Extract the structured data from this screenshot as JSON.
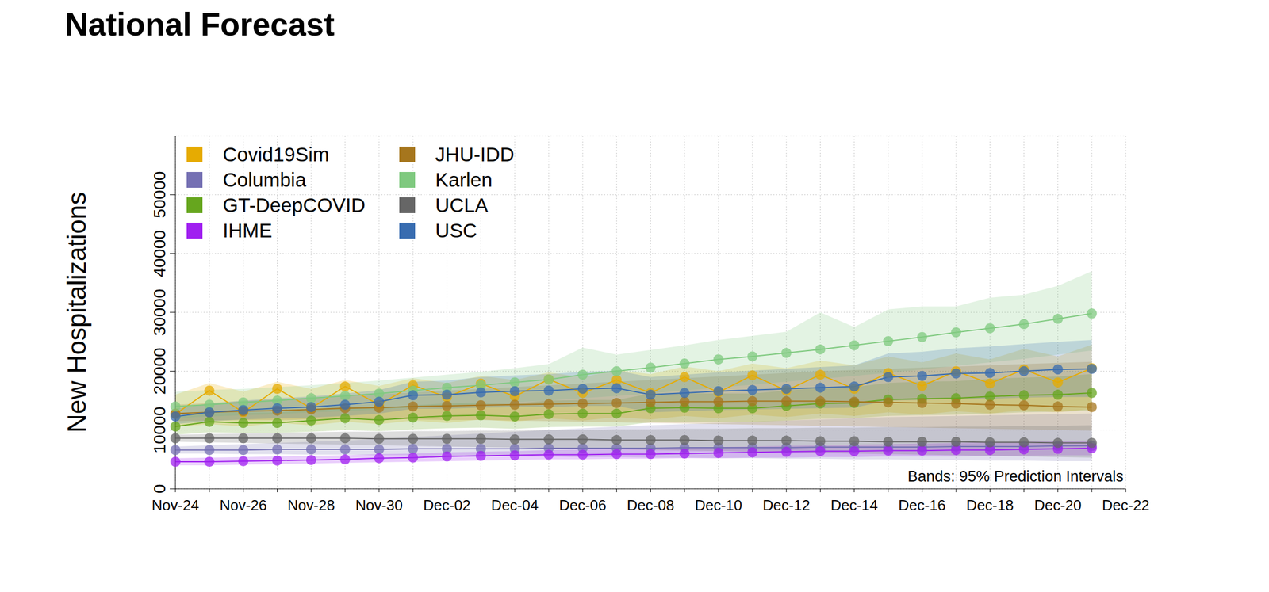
{
  "chart_data": {
    "type": "line",
    "title": "National Forecast",
    "y_label": "New Hospitalizations",
    "annotation": "Bands: 95% Prediction Intervals",
    "categories": [
      "Nov-24",
      null,
      "Nov-26",
      null,
      "Nov-28",
      null,
      "Nov-30",
      null,
      "Dec-02",
      null,
      "Dec-04",
      null,
      "Dec-06",
      null,
      "Dec-08",
      null,
      "Dec-10",
      null,
      "Dec-12",
      null,
      "Dec-14",
      null,
      "Dec-16",
      null,
      "Dec-18",
      null,
      "Dec-20",
      null,
      "Dec-22"
    ],
    "series": [
      {
        "name": "Covid19Sim",
        "color": "#e6ab02",
        "values": [
          12700,
          16700,
          13000,
          17000,
          13700,
          17400,
          14300,
          17600,
          15600,
          17900,
          15700,
          18600,
          16300,
          18500,
          16300,
          19000,
          16400,
          19300,
          16700,
          19400,
          17000,
          19700,
          17500,
          20000,
          17900,
          20300,
          18100,
          20500,
          null
        ],
        "lower": [
          10500,
          11000,
          10600,
          11200,
          10800,
          11400,
          11000,
          11600,
          11200,
          11800,
          11400,
          12000,
          11600,
          12200,
          11800,
          12400,
          12000,
          12600,
          12200,
          12800,
          12400,
          13000,
          12600,
          13200,
          12800,
          13400,
          13000,
          13600,
          null
        ],
        "upper": [
          16000,
          18000,
          16500,
          18200,
          17000,
          18500,
          17500,
          18800,
          18000,
          19200,
          18500,
          19800,
          19000,
          20200,
          19500,
          20800,
          20000,
          21300,
          20500,
          21800,
          21000,
          22500,
          21500,
          23000,
          22000,
          23800,
          22500,
          24500,
          null
        ]
      },
      {
        "name": "Columbia",
        "color": "#7570b3",
        "values": [
          6600,
          6600,
          6600,
          6700,
          6700,
          6700,
          6700,
          6800,
          6800,
          6800,
          6800,
          6900,
          6900,
          6900,
          6900,
          7000,
          7000,
          7000,
          7000,
          7100,
          7100,
          7100,
          7100,
          7200,
          7200,
          7200,
          7300,
          7300,
          null
        ],
        "lower": [
          6000,
          6000,
          5900,
          5900,
          5800,
          5800,
          5700,
          5700,
          5600,
          5600,
          5500,
          5500,
          5400,
          5400,
          5300,
          5300,
          5200,
          5200,
          5100,
          5100,
          5000,
          5000,
          4900,
          4900,
          4800,
          4800,
          4700,
          4700,
          null
        ],
        "upper": [
          7200,
          7400,
          7600,
          7800,
          8000,
          8200,
          8500,
          8800,
          9100,
          9400,
          9700,
          10000,
          10300,
          10600,
          10800,
          11000,
          11200,
          11400,
          11600,
          11800,
          12000,
          12200,
          12300,
          12400,
          12500,
          12600,
          12700,
          12800,
          null
        ]
      },
      {
        "name": "GT-DeepCOVID",
        "color": "#66a61e",
        "values": [
          10600,
          11400,
          11200,
          11200,
          11600,
          12000,
          11700,
          12100,
          12400,
          12500,
          12300,
          12700,
          12800,
          12800,
          13700,
          13800,
          13700,
          13700,
          14100,
          14500,
          14600,
          15200,
          15300,
          15400,
          15700,
          15900,
          16000,
          16300,
          null
        ],
        "lower": [
          9200,
          9600,
          9500,
          9500,
          9700,
          10000,
          9800,
          10100,
          10300,
          10400,
          10200,
          10500,
          10600,
          10600,
          11300,
          11400,
          11300,
          11300,
          11600,
          11900,
          12000,
          12400,
          12500,
          12600,
          12800,
          13000,
          13100,
          13300,
          null
        ],
        "upper": [
          12200,
          13200,
          13000,
          13000,
          13500,
          14000,
          13700,
          14200,
          14500,
          14700,
          14500,
          15000,
          15100,
          15100,
          16200,
          16300,
          16200,
          16200,
          16700,
          17200,
          17300,
          18000,
          18200,
          18300,
          18700,
          18900,
          19100,
          19500,
          null
        ]
      },
      {
        "name": "IHME",
        "color": "#a020f0",
        "values": [
          4600,
          4600,
          4700,
          4800,
          4900,
          5000,
          5200,
          5300,
          5500,
          5600,
          5700,
          5800,
          5800,
          5900,
          5900,
          6000,
          6100,
          6200,
          6300,
          6400,
          6400,
          6500,
          6500,
          6600,
          6600,
          6700,
          6800,
          6900,
          null
        ],
        "lower": [
          4000,
          4000,
          4100,
          4200,
          4300,
          4400,
          4500,
          4600,
          4700,
          4800,
          4900,
          5000,
          5000,
          5100,
          5100,
          5200,
          5200,
          5300,
          5300,
          5400,
          5400,
          5500,
          5500,
          5500,
          5600,
          5600,
          5700,
          5700,
          null
        ],
        "upper": [
          5200,
          5300,
          5400,
          5500,
          5600,
          5700,
          5900,
          6000,
          6200,
          6300,
          6400,
          6600,
          6700,
          6800,
          6900,
          7000,
          7100,
          7200,
          7300,
          7400,
          7500,
          7600,
          7700,
          7800,
          7900,
          8000,
          8100,
          8200,
          null
        ]
      },
      {
        "name": "JHU-IDD",
        "color": "#a6761d",
        "values": [
          12800,
          13000,
          13200,
          13300,
          13500,
          13700,
          13800,
          14000,
          14100,
          14200,
          14300,
          14400,
          14500,
          14600,
          14700,
          14800,
          14800,
          14900,
          14900,
          14900,
          14800,
          14700,
          14600,
          14500,
          14300,
          14200,
          14000,
          13900,
          null
        ],
        "lower": [
          11500,
          11600,
          11700,
          11700,
          11800,
          11800,
          11800,
          11800,
          11700,
          11700,
          11600,
          11500,
          11400,
          11300,
          11200,
          11100,
          11000,
          10900,
          10800,
          10700,
          10600,
          10500,
          10400,
          10300,
          10200,
          10100,
          10000,
          9900,
          null
        ],
        "upper": [
          14300,
          14600,
          14900,
          15200,
          15500,
          15800,
          16100,
          16400,
          16700,
          17000,
          17300,
          17600,
          17900,
          18200,
          18500,
          18800,
          19100,
          19400,
          19700,
          20000,
          20200,
          20400,
          20600,
          20800,
          21000,
          21200,
          21400,
          21600,
          null
        ]
      },
      {
        "name": "Karlen",
        "color": "#7fc97f",
        "values": [
          14000,
          14300,
          14700,
          15000,
          15400,
          15800,
          16200,
          16700,
          17200,
          17600,
          18100,
          18600,
          19400,
          20000,
          20600,
          21300,
          22000,
          22500,
          23100,
          23700,
          24400,
          25100,
          25800,
          26600,
          27300,
          28000,
          28900,
          29800,
          null
        ],
        "lower": [
          12000,
          12300,
          12500,
          12700,
          13000,
          13200,
          13500,
          13800,
          14100,
          14400,
          14700,
          15000,
          15400,
          15800,
          16200,
          16700,
          17200,
          17700,
          18200,
          18700,
          19200,
          19700,
          20300,
          20900,
          21500,
          22100,
          22800,
          23500,
          null
        ],
        "upper": [
          16500,
          16800,
          17000,
          17300,
          17600,
          18000,
          18400,
          18900,
          19400,
          19900,
          20500,
          21200,
          24000,
          22800,
          23600,
          24400,
          25300,
          26000,
          26700,
          30000,
          27500,
          30500,
          31000,
          31000,
          32500,
          33000,
          34500,
          37000,
          null
        ]
      },
      {
        "name": "UCLA",
        "color": "#666666",
        "values": [
          8600,
          8600,
          8600,
          8600,
          8600,
          8600,
          8500,
          8500,
          8500,
          8500,
          8400,
          8400,
          8400,
          8300,
          8300,
          8300,
          8200,
          8200,
          8200,
          8100,
          8100,
          8000,
          8000,
          8000,
          7900,
          7900,
          7800,
          7800,
          null
        ],
        "lower": [
          8000,
          7900,
          7800,
          7700,
          7600,
          7500,
          7400,
          7300,
          7200,
          7100,
          7000,
          6900,
          6800,
          6700,
          6600,
          6500,
          6400,
          6300,
          6200,
          6100,
          6000,
          5900,
          5800,
          5700,
          5600,
          5500,
          5400,
          5300,
          null
        ],
        "upper": [
          9200,
          9300,
          9400,
          9500,
          9600,
          9700,
          9700,
          9800,
          9800,
          9900,
          9900,
          10000,
          10000,
          10100,
          10100,
          10200,
          10200,
          10300,
          10300,
          10400,
          10400,
          10500,
          10500,
          10600,
          10600,
          10700,
          10700,
          10800,
          null
        ]
      },
      {
        "name": "USC",
        "color": "#386cb0",
        "values": [
          12300,
          13000,
          13400,
          13700,
          13900,
          14300,
          14800,
          15900,
          16000,
          16400,
          16600,
          16700,
          17000,
          17100,
          16000,
          16300,
          16600,
          16800,
          17000,
          17200,
          17400,
          19000,
          19200,
          19600,
          19700,
          20000,
          20300,
          20400,
          null
        ],
        "lower": [
          11000,
          11500,
          11800,
          12000,
          12100,
          12400,
          12800,
          13600,
          13600,
          13800,
          13900,
          13900,
          14100,
          14100,
          13000,
          13200,
          13400,
          13500,
          13600,
          13700,
          13800,
          15000,
          15100,
          15300,
          15300,
          15500,
          15600,
          15600,
          null
        ],
        "upper": [
          13600,
          14500,
          15000,
          15400,
          15700,
          16200,
          16800,
          18200,
          18400,
          19000,
          19300,
          19500,
          19900,
          20100,
          19000,
          19400,
          19800,
          20100,
          20400,
          20700,
          21000,
          23000,
          23300,
          23900,
          24200,
          24600,
          25000,
          25300,
          null
        ]
      }
    ],
    "ylim": [
      0,
      60000
    ],
    "yticks": [
      0,
      10000,
      20000,
      30000,
      40000,
      50000
    ],
    "grid": true,
    "legend": "upper left",
    "marker": "circle"
  }
}
